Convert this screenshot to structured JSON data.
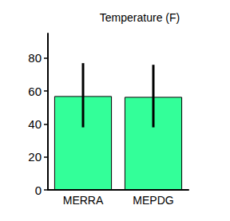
{
  "chart_data": {
    "type": "bar",
    "title": "Temperature (F)",
    "categories": [
      "MERRA",
      "MEPDG"
    ],
    "values": [
      57,
      56.5
    ],
    "error_low": [
      38,
      38
    ],
    "error_high": [
      77,
      76
    ],
    "color": "#33ff99",
    "ylim": [
      0,
      95
    ],
    "yticks": [
      0,
      20,
      40,
      60,
      80
    ],
    "grid": false
  }
}
